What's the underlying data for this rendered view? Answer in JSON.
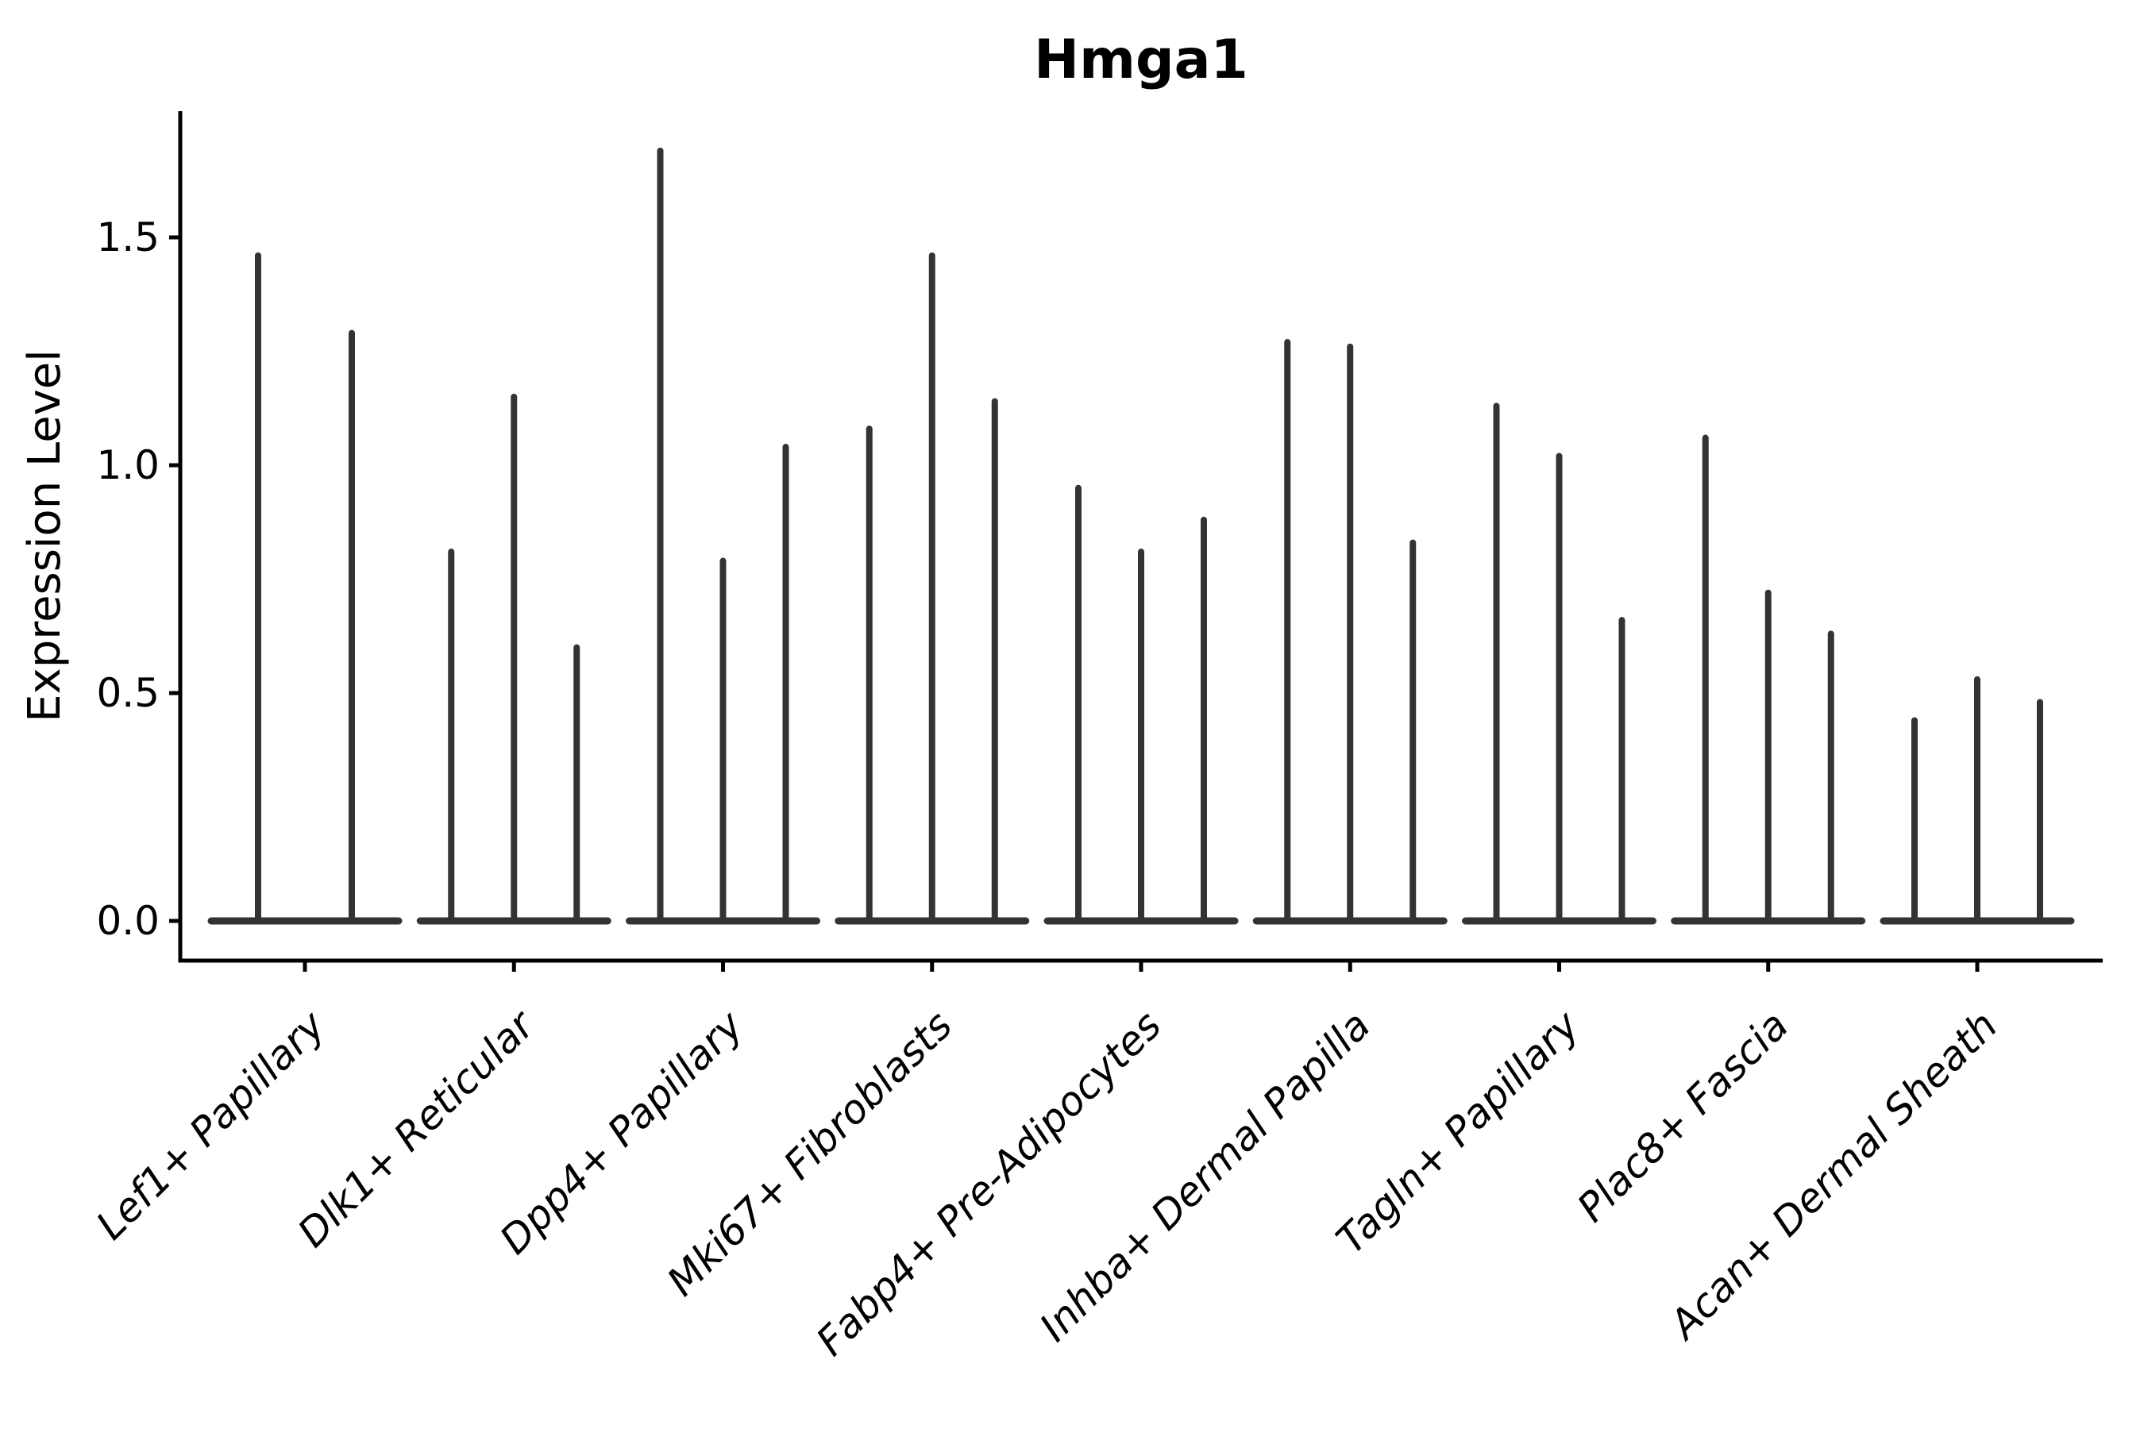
{
  "chart_data": {
    "type": "violin",
    "title": "Hmga1",
    "ylabel": "Expression Level",
    "xlabel": "",
    "y_tick_labels": [
      "0.0",
      "0.5",
      "1.0",
      "1.5"
    ],
    "ylim": [
      -0.09,
      1.78
    ],
    "grid": false,
    "legend": "none",
    "spike_violins": true,
    "categories": [
      "Lef1+ Papillary",
      "Dlk1+ Reticular",
      "Dpp4+ Papillary",
      "Mki67+ Fibroblasts",
      "Fabp4+ Pre-Adipocytes",
      "Inhba+ Dermal Papilla",
      "Tagln+ Papillary",
      "Plac8+ Fascia",
      "Acan+ Dermal Sheath"
    ],
    "series": [
      {
        "category": "Lef1+ Papillary",
        "violin_max_values": [
          1.46,
          1.29
        ]
      },
      {
        "category": "Dlk1+ Reticular",
        "violin_max_values": [
          0.81,
          1.15,
          0.6
        ]
      },
      {
        "category": "Dpp4+ Papillary",
        "violin_max_values": [
          1.69,
          0.79,
          1.04
        ]
      },
      {
        "category": "Mki67+ Fibroblasts",
        "violin_max_values": [
          1.08,
          1.46,
          1.14
        ]
      },
      {
        "category": "Fabp4+ Pre-Adipocytes",
        "violin_max_values": [
          0.95,
          0.81,
          0.88
        ]
      },
      {
        "category": "Inhba+ Dermal Papilla",
        "violin_max_values": [
          1.27,
          1.26,
          0.83
        ]
      },
      {
        "category": "Tagln+ Papillary",
        "violin_max_values": [
          1.13,
          1.02,
          0.66
        ]
      },
      {
        "category": "Plac8+ Fascia",
        "violin_max_values": [
          1.06,
          0.72,
          0.63
        ]
      },
      {
        "category": "Acan+ Dermal Sheath",
        "violin_max_values": [
          0.44,
          0.53,
          0.48
        ]
      }
    ],
    "style": {
      "violin_color": "#333333",
      "axis_color": "#000000",
      "background": "#ffffff"
    }
  }
}
